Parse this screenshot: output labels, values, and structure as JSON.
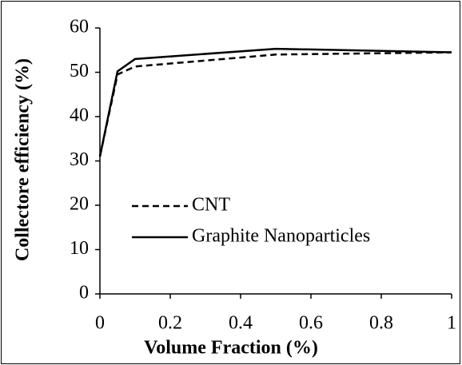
{
  "chart_data": {
    "type": "line",
    "x_label": "Volume Fraction (%)",
    "y_label": "Collectore efficiency (%)",
    "xlim": [
      0,
      1
    ],
    "xticks": [
      0,
      0.2,
      0.4,
      0.6,
      0.8,
      1
    ],
    "ylim": [
      0,
      60
    ],
    "yticks": [
      0,
      10,
      20,
      30,
      40,
      50,
      60
    ],
    "grid": false,
    "legend": "lower left",
    "series": [
      {
        "name": "CNT",
        "color": "#000000",
        "dash": "dashed",
        "x": [
          0,
          0.05,
          0.1,
          0.5,
          1
        ],
        "values": [
          31,
          49.5,
          51.3,
          54,
          54.5
        ]
      },
      {
        "name": "Graphite Nanoparticles",
        "color": "#000000",
        "dash": "solid",
        "x": [
          0,
          0.05,
          0.1,
          0.5,
          1
        ],
        "values": [
          31,
          50.2,
          53,
          55.3,
          54.5
        ]
      }
    ]
  }
}
